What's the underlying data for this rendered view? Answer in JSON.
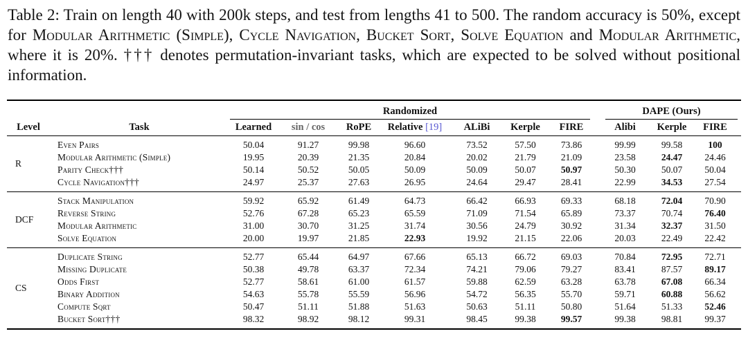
{
  "caption": {
    "segments": [
      {
        "text": "Table 2: Train on length 40 with 200k steps, and test from lengths 41 to 500. The random accuracy is 50%, except for ",
        "sc": false
      },
      {
        "text": "Modular Arithmetic (Simple)",
        "sc": true
      },
      {
        "text": ", ",
        "sc": false
      },
      {
        "text": "Cycle Navigation",
        "sc": true
      },
      {
        "text": ", ",
        "sc": false
      },
      {
        "text": "Bucket Sort",
        "sc": true
      },
      {
        "text": ", ",
        "sc": false
      },
      {
        "text": "Solve Equation",
        "sc": true
      },
      {
        "text": " and ",
        "sc": false
      },
      {
        "text": "Modular Arithmetic",
        "sc": true
      },
      {
        "text": ", where it is 20%. ††† denotes permutation-invariant tasks, which are expected to be solved without positional information.",
        "sc": false
      }
    ]
  },
  "table": {
    "group_headers": {
      "randomized": "Randomized",
      "dape": "DAPE (Ours)"
    },
    "columns": {
      "level": "Level",
      "task": "Task",
      "learned": "Learned",
      "sincos": "sin / cos",
      "rope": "RoPE",
      "relative": "Relative",
      "relative_cite": "[19]",
      "alibi": "ALiBi",
      "kerple": "Kerple",
      "fire": "FIRE",
      "dape_alibi": "Alibi",
      "dape_kerple": "Kerple",
      "dape_fire": "FIRE"
    },
    "groups": [
      {
        "level": "R",
        "rows": [
          {
            "task": "Even Pairs",
            "values": [
              "50.04",
              "91.27",
              "99.98",
              "96.60",
              "73.52",
              "57.50",
              "73.86",
              "99.99",
              "99.58",
              "100"
            ],
            "bold": [
              9
            ]
          },
          {
            "task": "Modular Arithmetic (Simple)",
            "values": [
              "19.95",
              "20.39",
              "21.35",
              "20.84",
              "20.02",
              "21.79",
              "21.09",
              "23.58",
              "24.47",
              "24.46"
            ],
            "bold": [
              8
            ]
          },
          {
            "task": "Parity Check†††",
            "values": [
              "50.14",
              "50.52",
              "50.05",
              "50.09",
              "50.09",
              "50.07",
              "50.97",
              "50.30",
              "50.07",
              "50.04"
            ],
            "bold": [
              6
            ]
          },
          {
            "task": "Cycle Navigation†††",
            "values": [
              "24.97",
              "25.37",
              "27.63",
              "26.95",
              "24.64",
              "29.47",
              "28.41",
              "22.99",
              "34.53",
              "27.54"
            ],
            "bold": [
              8
            ]
          }
        ]
      },
      {
        "level": "DCF",
        "rows": [
          {
            "task": "Stack Manipulation",
            "values": [
              "59.92",
              "65.92",
              "61.49",
              "64.73",
              "66.42",
              "66.93",
              "69.33",
              "68.18",
              "72.04",
              "70.90"
            ],
            "bold": [
              8
            ]
          },
          {
            "task": "Reverse String",
            "values": [
              "52.76",
              "67.28",
              "65.23",
              "65.59",
              "71.09",
              "71.54",
              "65.89",
              "73.37",
              "70.74",
              "76.40"
            ],
            "bold": [
              9
            ]
          },
          {
            "task": "Modular Arithmetic",
            "values": [
              "31.00",
              "30.70",
              "31.25",
              "31.74",
              "30.56",
              "24.79",
              "30.92",
              "31.34",
              "32.37",
              "31.50"
            ],
            "bold": [
              8
            ]
          },
          {
            "task": "Solve Equation",
            "values": [
              "20.00",
              "19.97",
              "21.85",
              "22.93",
              "19.92",
              "21.15",
              "22.06",
              "20.03",
              "22.49",
              "22.42"
            ],
            "bold": [
              3
            ]
          }
        ]
      },
      {
        "level": "CS",
        "rows": [
          {
            "task": "Duplicate String",
            "values": [
              "52.77",
              "65.44",
              "64.97",
              "67.66",
              "65.13",
              "66.72",
              "69.03",
              "70.84",
              "72.95",
              "72.71"
            ],
            "bold": [
              8
            ]
          },
          {
            "task": "Missing Duplicate",
            "values": [
              "50.38",
              "49.78",
              "63.37",
              "72.34",
              "74.21",
              "79.06",
              "79.27",
              "83.41",
              "87.57",
              "89.17"
            ],
            "bold": [
              9
            ]
          },
          {
            "task": "Odds First",
            "values": [
              "52.77",
              "58.61",
              "61.00",
              "61.57",
              "59.88",
              "62.59",
              "63.28",
              "63.78",
              "67.08",
              "66.34"
            ],
            "bold": [
              8
            ]
          },
          {
            "task": "Binary Addition",
            "values": [
              "54.63",
              "55.78",
              "55.59",
              "56.96",
              "54.72",
              "56.35",
              "55.70",
              "59.71",
              "60.88",
              "56.62"
            ],
            "bold": [
              8
            ]
          },
          {
            "task": "Compute Sqrt",
            "values": [
              "50.47",
              "51.11",
              "51.88",
              "51.63",
              "50.63",
              "51.11",
              "50.80",
              "51.64",
              "51.33",
              "52.46"
            ],
            "bold": [
              9
            ]
          },
          {
            "task": "Bucket Sort†††",
            "values": [
              "98.32",
              "98.92",
              "98.12",
              "99.31",
              "98.45",
              "99.38",
              "99.57",
              "99.38",
              "98.81",
              "99.37"
            ],
            "bold": [
              6
            ]
          }
        ]
      }
    ]
  }
}
